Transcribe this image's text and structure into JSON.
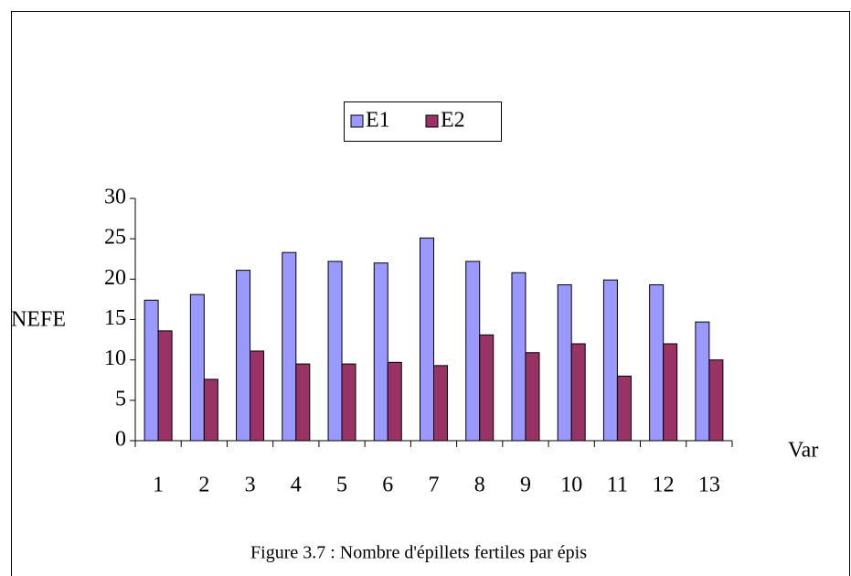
{
  "chart_data": {
    "type": "bar",
    "caption": "Figure 3.7 : Nombre d'épillets fertiles par épis",
    "xlabel": "Var",
    "ylabel": "NEFE",
    "categories": [
      "1",
      "2",
      "3",
      "4",
      "5",
      "6",
      "7",
      "8",
      "9",
      "10",
      "11",
      "12",
      "13"
    ],
    "series": [
      {
        "name": "E1",
        "color": "#9999ff",
        "values": [
          17.4,
          18.1,
          21.1,
          23.3,
          22.2,
          22.0,
          25.1,
          22.2,
          20.8,
          19.3,
          19.9,
          19.3,
          14.7
        ]
      },
      {
        "name": "E2",
        "color": "#993366",
        "values": [
          13.6,
          7.6,
          11.1,
          9.5,
          9.5,
          9.7,
          9.3,
          13.1,
          10.9,
          12.0,
          8.0,
          12.0,
          10.0
        ]
      }
    ],
    "ylim": [
      0,
      30
    ],
    "yticks": [
      0,
      5,
      10,
      15,
      20,
      25,
      30
    ],
    "grid": false,
    "legend": "top"
  }
}
